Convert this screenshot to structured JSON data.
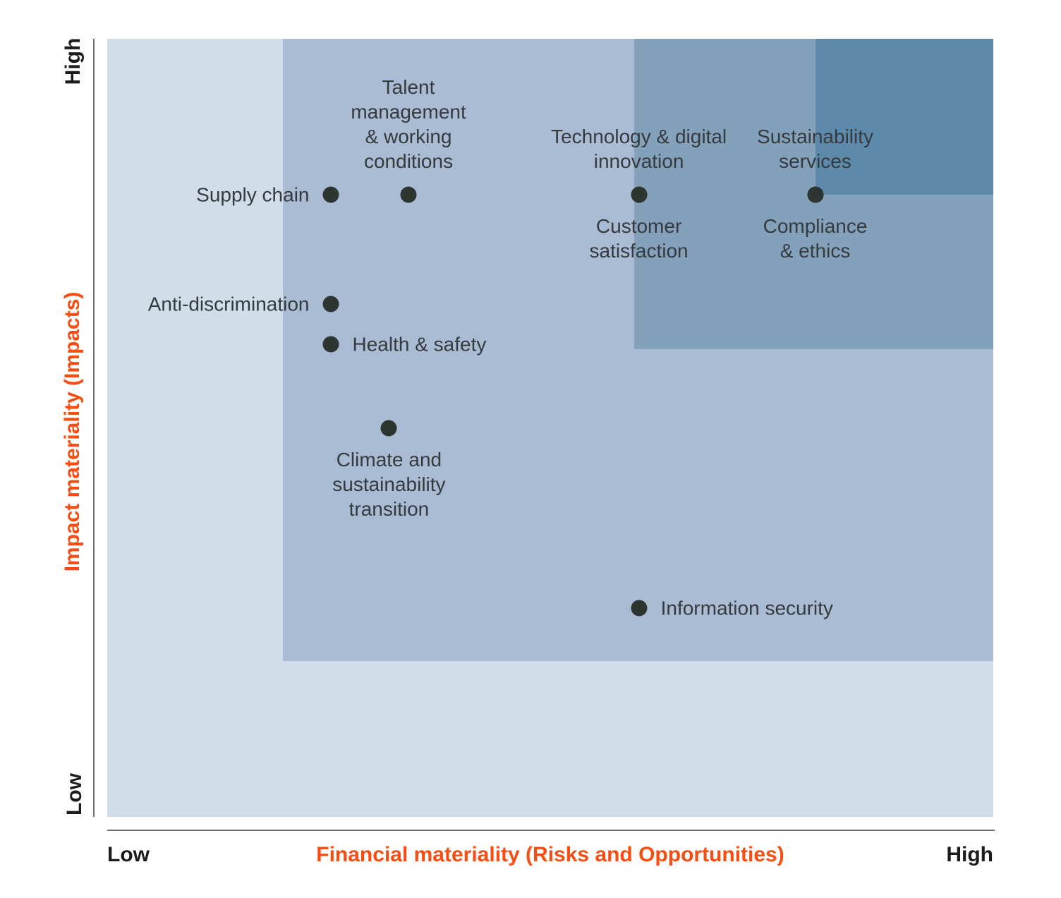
{
  "colors": {
    "background": "#ffffff",
    "axis_line": "#6e7173",
    "accent_orange": "#f84d12",
    "tick_label": "#1c1c1a",
    "point_dot": "#2e3430",
    "point_label": "#343a3d",
    "region_tier_1": "#d1dde8",
    "region_tier_2": "#aabcd3",
    "region_tier_3": "#84a1bb",
    "region_tier_4": "#5d8aab"
  },
  "chart_data": {
    "type": "scatter",
    "xlabel": "Financial materiality (Risks and Opportunities)",
    "ylabel": "Impact materiality (Impacts)",
    "x_ticks": [
      "Low",
      "High"
    ],
    "y_ticks": [
      "Low",
      "High"
    ],
    "axis_scale": "qualitative Low-to-High, coordinates normalized 0-1",
    "grid": false,
    "legend": false,
    "regions": [
      {
        "name": "priority-tier-1",
        "x0": 0,
        "y0": 0,
        "x1": 1,
        "y1": 1,
        "color": "#d1dde8"
      },
      {
        "name": "priority-tier-2",
        "x0": 0.198,
        "y0": 0.2,
        "x1": 1,
        "y1": 1,
        "color": "#aabcd3"
      },
      {
        "name": "priority-tier-3",
        "x0": 0.595,
        "y0": 0.601,
        "x1": 1,
        "y1": 1,
        "color": "#84a1bb"
      },
      {
        "name": "priority-tier-4",
        "x0": 0.799,
        "y0": 0.8,
        "x1": 1,
        "y1": 1,
        "color": "#5d8aab"
      }
    ],
    "points": [
      {
        "label": "Supply chain",
        "x": 0.252,
        "y": 0.8,
        "label_placement": "left"
      },
      {
        "label": "Talent\nmanagement\n& working\nconditions",
        "x": 0.34,
        "y": 0.8,
        "label_placement": "above"
      },
      {
        "label": "Technology & digital\ninnovation",
        "x": 0.6,
        "y": 0.8,
        "label_placement": "above"
      },
      {
        "label": "Customer\nsatisfaction",
        "x": 0.6,
        "y": 0.8,
        "label_placement": "below"
      },
      {
        "label": "Sustainability\nservices",
        "x": 0.799,
        "y": 0.8,
        "label_placement": "above"
      },
      {
        "label": "Compliance\n& ethics",
        "x": 0.799,
        "y": 0.8,
        "label_placement": "below"
      },
      {
        "label": "Anti-discrimination",
        "x": 0.252,
        "y": 0.659,
        "label_placement": "left"
      },
      {
        "label": "Health & safety",
        "x": 0.252,
        "y": 0.607,
        "label_placement": "right"
      },
      {
        "label": "Climate and\nsustainability\ntransition",
        "x": 0.318,
        "y": 0.5,
        "label_placement": "below"
      },
      {
        "label": "Information security",
        "x": 0.6,
        "y": 0.268,
        "label_placement": "right"
      }
    ]
  }
}
